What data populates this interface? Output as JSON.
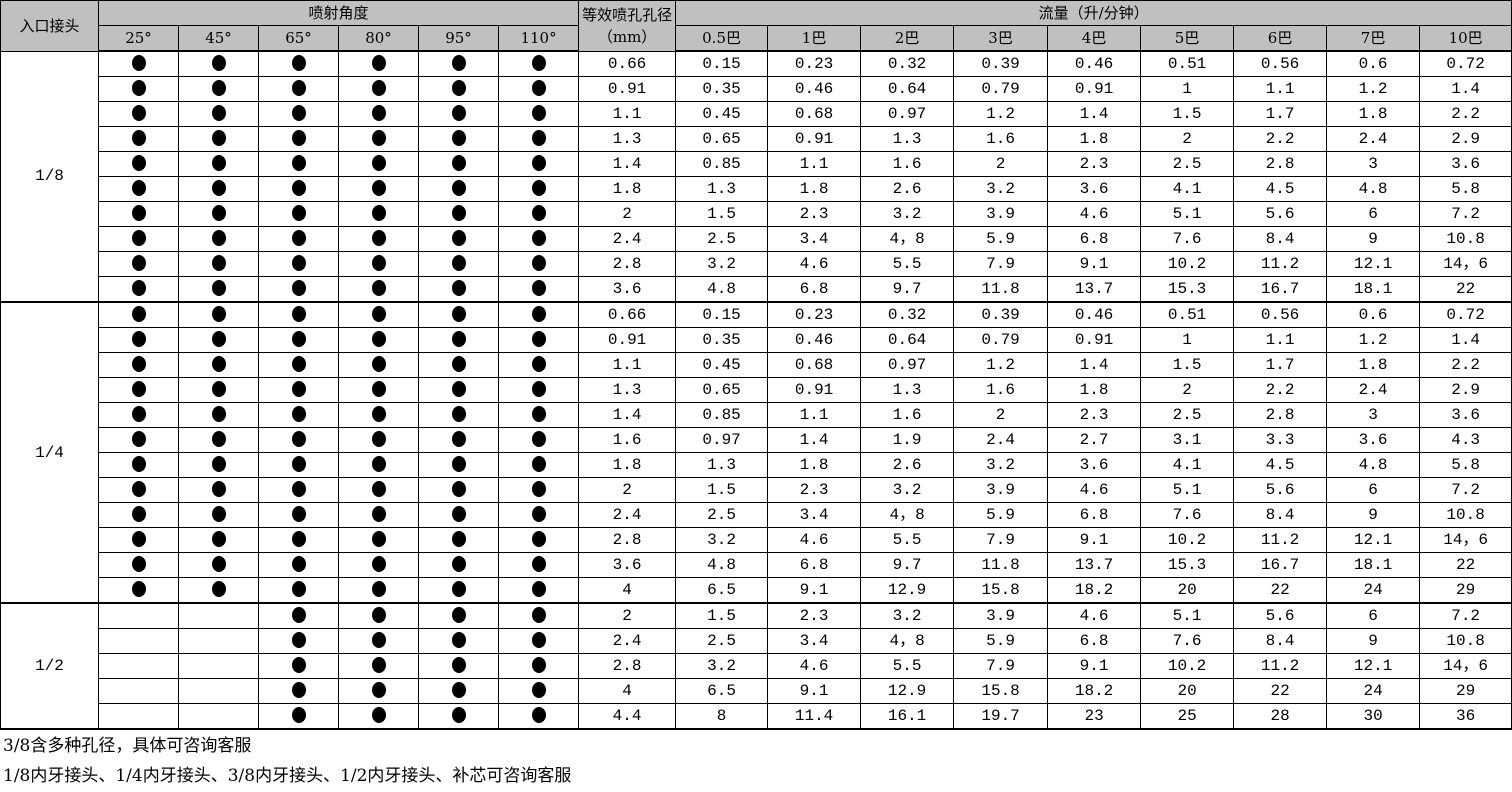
{
  "header": {
    "inlet": "入口接头",
    "angle_group": "喷射角度",
    "angles": [
      "25°",
      "45°",
      "65°",
      "80°",
      "95°",
      "110°"
    ],
    "diameter": "等效喷孔孔径（mm）",
    "flow_group": "流量（升/分钟）",
    "pressures": [
      "0.5巴",
      "1巴",
      "2巴",
      "3巴",
      "4巴",
      "5巴",
      "6巴",
      "7巴",
      "10巴"
    ]
  },
  "dot_symbol": "●",
  "groups": [
    {
      "inlet": "1/8",
      "rows": [
        {
          "angles": [
            1,
            1,
            1,
            1,
            1,
            1
          ],
          "diameter": "0.66",
          "flows": [
            "0.15",
            "0.23",
            "0.32",
            "0.39",
            "0.46",
            "0.51",
            "0.56",
            "0.6",
            "0.72"
          ]
        },
        {
          "angles": [
            1,
            1,
            1,
            1,
            1,
            1
          ],
          "diameter": "0.91",
          "flows": [
            "0.35",
            "0.46",
            "0.64",
            "0.79",
            "0.91",
            "1",
            "1.1",
            "1.2",
            "1.4"
          ]
        },
        {
          "angles": [
            1,
            1,
            1,
            1,
            1,
            1
          ],
          "diameter": "1.1",
          "flows": [
            "0.45",
            "0.68",
            "0.97",
            "1.2",
            "1.4",
            "1.5",
            "1.7",
            "1.8",
            "2.2"
          ]
        },
        {
          "angles": [
            1,
            1,
            1,
            1,
            1,
            1
          ],
          "diameter": "1.3",
          "flows": [
            "0.65",
            "0.91",
            "1.3",
            "1.6",
            "1.8",
            "2",
            "2.2",
            "2.4",
            "2.9"
          ]
        },
        {
          "angles": [
            1,
            1,
            1,
            1,
            1,
            1
          ],
          "diameter": "1.4",
          "flows": [
            "0.85",
            "1.1",
            "1.6",
            "2",
            "2.3",
            "2.5",
            "2.8",
            "3",
            "3.6"
          ]
        },
        {
          "angles": [
            1,
            1,
            1,
            1,
            1,
            1
          ],
          "diameter": "1.8",
          "flows": [
            "1.3",
            "1.8",
            "2.6",
            "3.2",
            "3.6",
            "4.1",
            "4.5",
            "4.8",
            "5.8"
          ]
        },
        {
          "angles": [
            1,
            1,
            1,
            1,
            1,
            1
          ],
          "diameter": "2",
          "flows": [
            "1.5",
            "2.3",
            "3.2",
            "3.9",
            "4.6",
            "5.1",
            "5.6",
            "6",
            "7.2"
          ]
        },
        {
          "angles": [
            1,
            1,
            1,
            1,
            1,
            1
          ],
          "diameter": "2.4",
          "flows": [
            "2.5",
            "3.4",
            "4，8",
            "5.9",
            "6.8",
            "7.6",
            "8.4",
            "9",
            "10.8"
          ]
        },
        {
          "angles": [
            1,
            1,
            1,
            1,
            1,
            1
          ],
          "diameter": "2.8",
          "flows": [
            "3.2",
            "4.6",
            "5.5",
            "7.9",
            "9.1",
            "10.2",
            "11.2",
            "12.1",
            "14，6"
          ]
        },
        {
          "angles": [
            1,
            1,
            1,
            1,
            1,
            1
          ],
          "diameter": "3.6",
          "flows": [
            "4.8",
            "6.8",
            "9.7",
            "11.8",
            "13.7",
            "15.3",
            "16.7",
            "18.1",
            "22"
          ]
        }
      ]
    },
    {
      "inlet": "1/4",
      "rows": [
        {
          "angles": [
            1,
            1,
            1,
            1,
            1,
            1
          ],
          "diameter": "0.66",
          "flows": [
            "0.15",
            "0.23",
            "0.32",
            "0.39",
            "0.46",
            "0.51",
            "0.56",
            "0.6",
            "0.72"
          ]
        },
        {
          "angles": [
            1,
            1,
            1,
            1,
            1,
            1
          ],
          "diameter": "0.91",
          "flows": [
            "0.35",
            "0.46",
            "0.64",
            "0.79",
            "0.91",
            "1",
            "1.1",
            "1.2",
            "1.4"
          ]
        },
        {
          "angles": [
            1,
            1,
            1,
            1,
            1,
            1
          ],
          "diameter": "1.1",
          "flows": [
            "0.45",
            "0.68",
            "0.97",
            "1.2",
            "1.4",
            "1.5",
            "1.7",
            "1.8",
            "2.2"
          ]
        },
        {
          "angles": [
            1,
            1,
            1,
            1,
            1,
            1
          ],
          "diameter": "1.3",
          "flows": [
            "0.65",
            "0.91",
            "1.3",
            "1.6",
            "1.8",
            "2",
            "2.2",
            "2.4",
            "2.9"
          ]
        },
        {
          "angles": [
            1,
            1,
            1,
            1,
            1,
            1
          ],
          "diameter": "1.4",
          "flows": [
            "0.85",
            "1.1",
            "1.6",
            "2",
            "2.3",
            "2.5",
            "2.8",
            "3",
            "3.6"
          ]
        },
        {
          "angles": [
            1,
            1,
            1,
            1,
            1,
            1
          ],
          "diameter": "1.6",
          "flows": [
            "0.97",
            "1.4",
            "1.9",
            "2.4",
            "2.7",
            "3.1",
            "3.3",
            "3.6",
            "4.3"
          ]
        },
        {
          "angles": [
            1,
            1,
            1,
            1,
            1,
            1
          ],
          "diameter": "1.8",
          "flows": [
            "1.3",
            "1.8",
            "2.6",
            "3.2",
            "3.6",
            "4.1",
            "4.5",
            "4.8",
            "5.8"
          ]
        },
        {
          "angles": [
            1,
            1,
            1,
            1,
            1,
            1
          ],
          "diameter": "2",
          "flows": [
            "1.5",
            "2.3",
            "3.2",
            "3.9",
            "4.6",
            "5.1",
            "5.6",
            "6",
            "7.2"
          ]
        },
        {
          "angles": [
            1,
            1,
            1,
            1,
            1,
            1
          ],
          "diameter": "2.4",
          "flows": [
            "2.5",
            "3.4",
            "4，8",
            "5.9",
            "6.8",
            "7.6",
            "8.4",
            "9",
            "10.8"
          ]
        },
        {
          "angles": [
            1,
            1,
            1,
            1,
            1,
            1
          ],
          "diameter": "2.8",
          "flows": [
            "3.2",
            "4.6",
            "5.5",
            "7.9",
            "9.1",
            "10.2",
            "11.2",
            "12.1",
            "14，6"
          ]
        },
        {
          "angles": [
            1,
            1,
            1,
            1,
            1,
            1
          ],
          "diameter": "3.6",
          "flows": [
            "4.8",
            "6.8",
            "9.7",
            "11.8",
            "13.7",
            "15.3",
            "16.7",
            "18.1",
            "22"
          ]
        },
        {
          "angles": [
            1,
            1,
            1,
            1,
            1,
            1
          ],
          "diameter": "4",
          "flows": [
            "6.5",
            "9.1",
            "12.9",
            "15.8",
            "18.2",
            "20",
            "22",
            "24",
            "29"
          ]
        }
      ]
    },
    {
      "inlet": "1/2",
      "rows": [
        {
          "angles": [
            0,
            0,
            1,
            1,
            1,
            1
          ],
          "diameter": "2",
          "flows": [
            "1.5",
            "2.3",
            "3.2",
            "3.9",
            "4.6",
            "5.1",
            "5.6",
            "6",
            "7.2"
          ]
        },
        {
          "angles": [
            0,
            0,
            1,
            1,
            1,
            1
          ],
          "diameter": "2.4",
          "flows": [
            "2.5",
            "3.4",
            "4，8",
            "5.9",
            "6.8",
            "7.6",
            "8.4",
            "9",
            "10.8"
          ]
        },
        {
          "angles": [
            0,
            0,
            1,
            1,
            1,
            1
          ],
          "diameter": "2.8",
          "flows": [
            "3.2",
            "4.6",
            "5.5",
            "7.9",
            "9.1",
            "10.2",
            "11.2",
            "12.1",
            "14，6"
          ]
        },
        {
          "angles": [
            0,
            0,
            1,
            1,
            1,
            1
          ],
          "diameter": "4",
          "flows": [
            "6.5",
            "9.1",
            "12.9",
            "15.8",
            "18.2",
            "20",
            "22",
            "24",
            "29"
          ]
        },
        {
          "angles": [
            0,
            0,
            1,
            1,
            1,
            1
          ],
          "diameter": "4.4",
          "flows": [
            "8",
            "11.4",
            "16.1",
            "19.7",
            "23",
            "25",
            "28",
            "30",
            "36"
          ]
        }
      ]
    }
  ],
  "notes": [
    "3/8含多种孔径，具体可咨询客服",
    "1/8内牙接头、1/4内牙接头、3/8内牙接头、1/2内牙接头、补芯可咨询客服"
  ]
}
